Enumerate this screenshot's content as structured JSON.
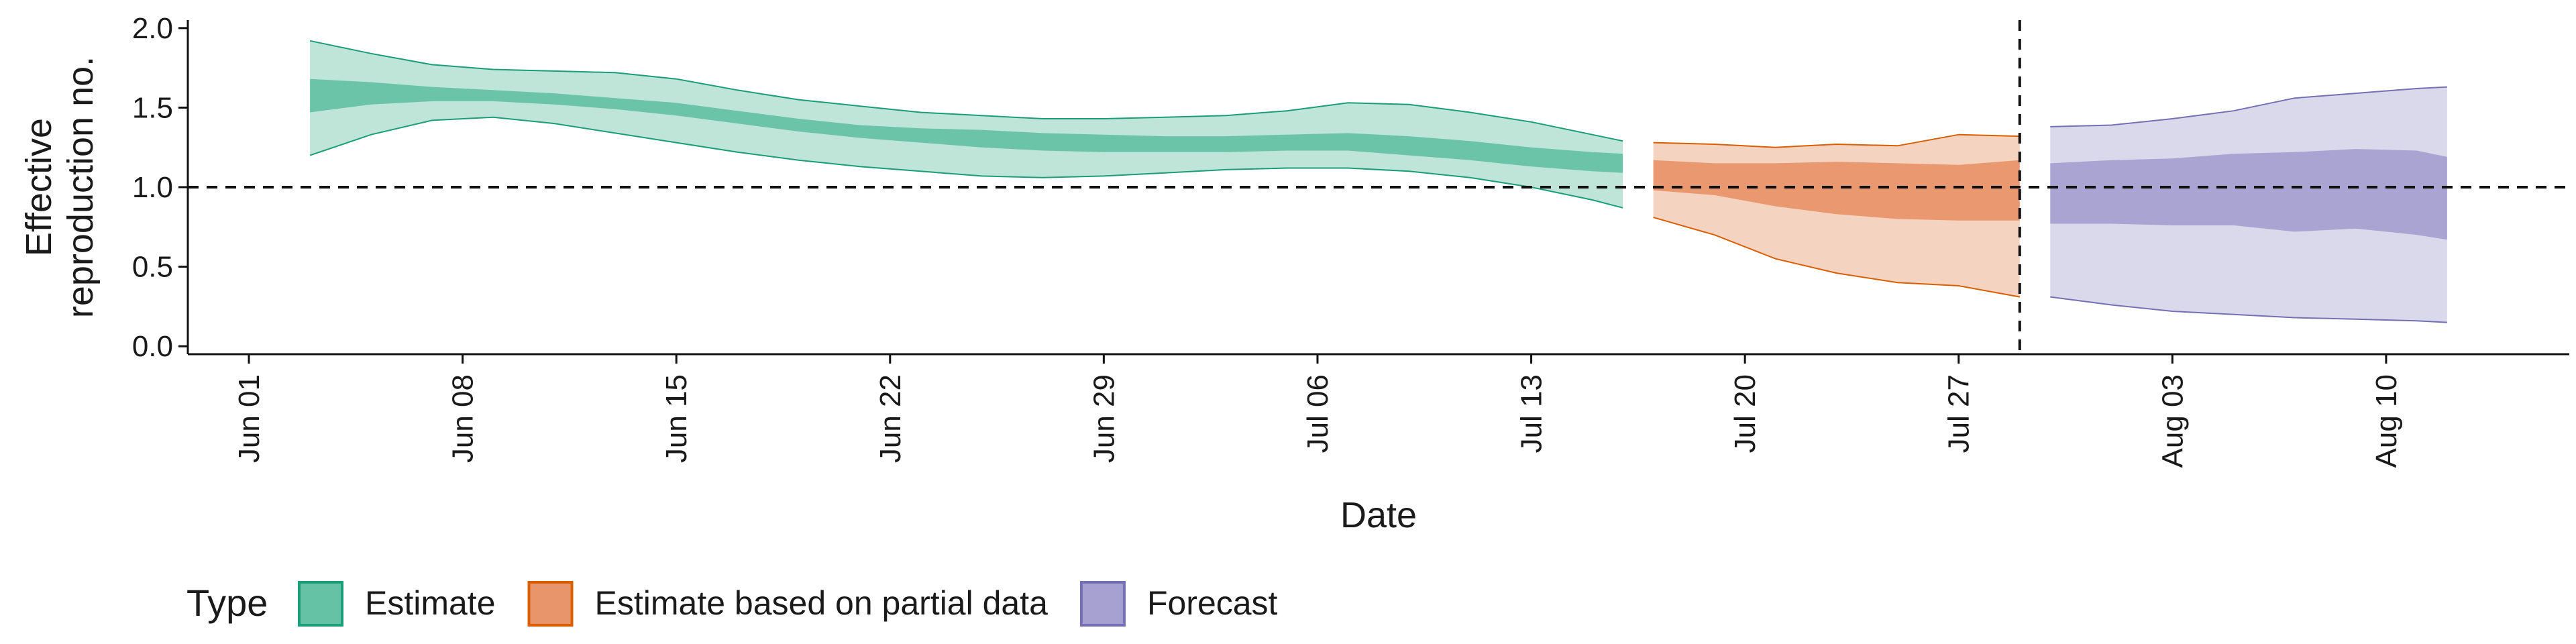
{
  "chart_data": {
    "type": "area",
    "xlabel": "Date",
    "ylabel_lines": [
      "Effective",
      "reproduction no."
    ],
    "xlim": [
      "2020-05-30",
      "2020-08-16"
    ],
    "ylim": [
      -0.05,
      2.05
    ],
    "y_ticks": [
      0.0,
      0.5,
      1.0,
      1.5,
      2.0
    ],
    "y_tick_labels": [
      "0.0",
      "0.5",
      "1.0",
      "1.5",
      "2.0"
    ],
    "x_ticks": [
      {
        "date": "2020-06-01",
        "label": "Jun 01"
      },
      {
        "date": "2020-06-08",
        "label": "Jun 08"
      },
      {
        "date": "2020-06-15",
        "label": "Jun 15"
      },
      {
        "date": "2020-06-22",
        "label": "Jun 22"
      },
      {
        "date": "2020-06-29",
        "label": "Jun 29"
      },
      {
        "date": "2020-07-06",
        "label": "Jul 06"
      },
      {
        "date": "2020-07-13",
        "label": "Jul 13"
      },
      {
        "date": "2020-07-20",
        "label": "Jul 20"
      },
      {
        "date": "2020-07-27",
        "label": "Jul 27"
      },
      {
        "date": "2020-08-03",
        "label": "Aug 03"
      },
      {
        "date": "2020-08-10",
        "label": "Aug 10"
      }
    ],
    "reference_line_y": 1.0,
    "vertical_line_date": "2020-07-29",
    "legend": {
      "title": "Type",
      "position": "bottom",
      "entries": [
        {
          "label": "Estimate",
          "fill": "#66c2a5",
          "stroke": "#1b9e77"
        },
        {
          "label": "Estimate based on partial data",
          "fill": "#e8956b",
          "stroke": "#d95f02"
        },
        {
          "label": "Forecast",
          "fill": "#a6a1d0",
          "stroke": "#7570b3"
        }
      ]
    },
    "series": [
      {
        "name": "Estimate",
        "fill": "#66c2a5",
        "stroke": "#1b9e77",
        "dates": [
          "2020-06-03",
          "2020-06-05",
          "2020-06-07",
          "2020-06-09",
          "2020-06-11",
          "2020-06-13",
          "2020-06-15",
          "2020-06-17",
          "2020-06-19",
          "2020-06-21",
          "2020-06-23",
          "2020-06-25",
          "2020-06-27",
          "2020-06-29",
          "2020-07-01",
          "2020-07-03",
          "2020-07-05",
          "2020-07-07",
          "2020-07-09",
          "2020-07-11",
          "2020-07-13",
          "2020-07-15",
          "2020-07-16"
        ],
        "lower90": [
          1.2,
          1.33,
          1.42,
          1.44,
          1.4,
          1.34,
          1.28,
          1.22,
          1.17,
          1.13,
          1.1,
          1.07,
          1.06,
          1.07,
          1.09,
          1.11,
          1.12,
          1.12,
          1.1,
          1.06,
          1.0,
          0.92,
          0.87
        ],
        "lower50": [
          1.47,
          1.52,
          1.54,
          1.54,
          1.52,
          1.49,
          1.45,
          1.4,
          1.35,
          1.31,
          1.28,
          1.25,
          1.23,
          1.22,
          1.22,
          1.22,
          1.23,
          1.23,
          1.2,
          1.17,
          1.13,
          1.1,
          1.09
        ],
        "upper50": [
          1.68,
          1.66,
          1.63,
          1.61,
          1.59,
          1.56,
          1.53,
          1.48,
          1.43,
          1.39,
          1.37,
          1.36,
          1.34,
          1.33,
          1.32,
          1.32,
          1.33,
          1.34,
          1.32,
          1.29,
          1.25,
          1.22,
          1.21
        ],
        "upper90": [
          1.92,
          1.84,
          1.77,
          1.74,
          1.73,
          1.72,
          1.68,
          1.61,
          1.55,
          1.51,
          1.47,
          1.45,
          1.43,
          1.43,
          1.44,
          1.45,
          1.48,
          1.53,
          1.52,
          1.47,
          1.41,
          1.33,
          1.29
        ]
      },
      {
        "name": "Estimate based on partial data",
        "fill": "#e8956b",
        "stroke": "#d95f02",
        "dates": [
          "2020-07-17",
          "2020-07-19",
          "2020-07-21",
          "2020-07-23",
          "2020-07-25",
          "2020-07-27",
          "2020-07-29"
        ],
        "lower90": [
          0.81,
          0.7,
          0.55,
          0.46,
          0.4,
          0.38,
          0.31
        ],
        "lower50": [
          0.98,
          0.95,
          0.88,
          0.83,
          0.8,
          0.79,
          0.79
        ],
        "upper50": [
          1.17,
          1.15,
          1.15,
          1.16,
          1.15,
          1.14,
          1.17
        ],
        "upper90": [
          1.28,
          1.27,
          1.25,
          1.27,
          1.26,
          1.33,
          1.32
        ]
      },
      {
        "name": "Forecast",
        "fill": "#a6a1d0",
        "stroke": "#7570b3",
        "dates": [
          "2020-07-30",
          "2020-08-01",
          "2020-08-03",
          "2020-08-05",
          "2020-08-07",
          "2020-08-09",
          "2020-08-11",
          "2020-08-12"
        ],
        "lower90": [
          0.31,
          0.26,
          0.22,
          0.2,
          0.18,
          0.17,
          0.16,
          0.15
        ],
        "lower50": [
          0.77,
          0.77,
          0.76,
          0.76,
          0.72,
          0.74,
          0.7,
          0.67
        ],
        "upper50": [
          1.15,
          1.17,
          1.18,
          1.21,
          1.22,
          1.24,
          1.23,
          1.19
        ],
        "upper90": [
          1.38,
          1.39,
          1.43,
          1.48,
          1.56,
          1.59,
          1.62,
          1.63
        ]
      }
    ]
  }
}
